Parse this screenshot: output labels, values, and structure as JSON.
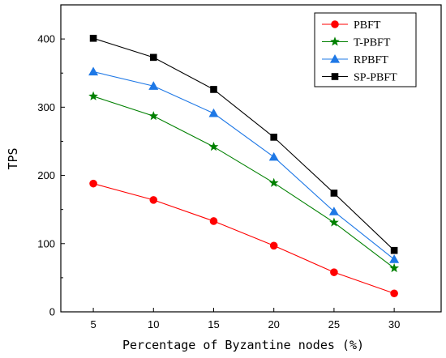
{
  "chart_data": {
    "type": "line",
    "title": "",
    "xlabel": "Percentage of Byzantine nodes (%)",
    "ylabel": "TPS",
    "x": [
      5,
      10,
      15,
      20,
      25,
      30
    ],
    "xticks": [
      "5",
      "10",
      "15",
      "20",
      "25",
      "30"
    ],
    "xlim": [
      2.3,
      33.9
    ],
    "yticks": [
      "0",
      "100",
      "200",
      "300",
      "400"
    ],
    "ylim": [
      0,
      450
    ],
    "grid": false,
    "legend_position": "top-right",
    "series": [
      {
        "name": "PBFT",
        "values": [
          188,
          164,
          133,
          97,
          58,
          27
        ],
        "color": "#ff0000",
        "marker": "circle"
      },
      {
        "name": "T-PBFT",
        "values": [
          316,
          287,
          242,
          189,
          131,
          64
        ],
        "color": "#008000",
        "marker": "star"
      },
      {
        "name": "RPBFT",
        "values": [
          352,
          331,
          291,
          227,
          147,
          77
        ],
        "color": "#1e78e6",
        "marker": "triangle"
      },
      {
        "name": "SP-PBFT",
        "values": [
          401,
          373,
          326,
          256,
          174,
          90
        ],
        "color": "#000000",
        "marker": "square"
      }
    ]
  }
}
